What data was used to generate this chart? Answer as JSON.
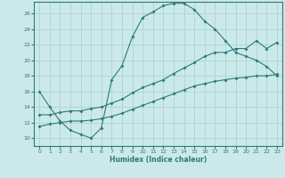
{
  "xlabel": "Humidex (Indice chaleur)",
  "bg_color": "#cce9e9",
  "grid_color": "#aad4d4",
  "line_color": "#2d7a7a",
  "xlim": [
    -0.5,
    23.5
  ],
  "ylim": [
    9,
    27.5
  ],
  "xticks": [
    0,
    1,
    2,
    3,
    4,
    5,
    6,
    7,
    8,
    9,
    10,
    11,
    12,
    13,
    14,
    15,
    16,
    17,
    18,
    19,
    20,
    21,
    22,
    23
  ],
  "yticks": [
    10,
    12,
    14,
    16,
    18,
    20,
    22,
    24,
    26
  ],
  "line1_x": [
    0,
    1,
    2,
    3,
    4,
    5,
    6,
    7,
    8,
    9,
    10,
    11,
    12,
    13,
    14,
    15,
    16,
    17,
    18,
    19,
    20,
    21,
    22,
    23
  ],
  "line1_y": [
    16.0,
    14.0,
    12.2,
    11.0,
    10.5,
    10.0,
    11.3,
    17.5,
    19.3,
    23.0,
    25.5,
    26.2,
    27.0,
    27.3,
    27.3,
    26.5,
    25.0,
    24.0,
    22.5,
    21.0,
    20.5,
    20.0,
    19.2,
    18.0
  ],
  "line2_x": [
    0,
    1,
    2,
    3,
    4,
    5,
    6,
    7,
    8,
    9,
    10,
    11,
    12,
    13,
    14,
    15,
    16,
    17,
    18,
    19,
    20,
    21,
    22,
    23
  ],
  "line2_y": [
    13.0,
    13.0,
    13.3,
    13.5,
    13.5,
    13.8,
    14.0,
    14.5,
    15.0,
    15.8,
    16.5,
    17.0,
    17.5,
    18.3,
    19.0,
    19.7,
    20.5,
    21.0,
    21.0,
    21.5,
    21.5,
    22.5,
    21.5,
    22.3
  ],
  "line3_x": [
    0,
    1,
    2,
    3,
    4,
    5,
    6,
    7,
    8,
    9,
    10,
    11,
    12,
    13,
    14,
    15,
    16,
    17,
    18,
    19,
    20,
    21,
    22,
    23
  ],
  "line3_y": [
    11.5,
    11.8,
    12.0,
    12.2,
    12.2,
    12.3,
    12.5,
    12.8,
    13.2,
    13.7,
    14.2,
    14.7,
    15.2,
    15.7,
    16.2,
    16.7,
    17.0,
    17.3,
    17.5,
    17.7,
    17.8,
    18.0,
    18.0,
    18.2
  ]
}
